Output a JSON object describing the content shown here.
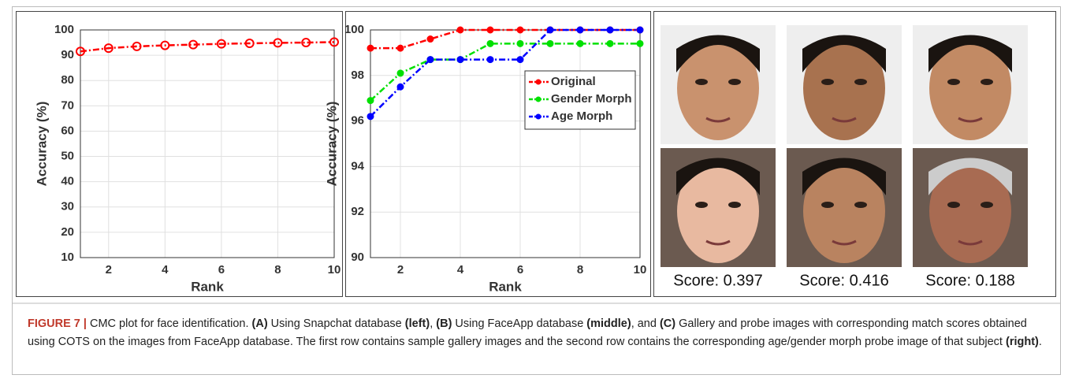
{
  "chart_data": [
    {
      "type": "line",
      "x": [
        1,
        2,
        3,
        4,
        5,
        6,
        7,
        8,
        9,
        10
      ],
      "xlabel": "Rank",
      "ylabel": "Accuracy (%)",
      "xlim": [
        1,
        10
      ],
      "xticks": [
        2,
        4,
        6,
        8,
        10
      ],
      "ylim": [
        10,
        100
      ],
      "yticks": [
        10,
        20,
        30,
        40,
        50,
        60,
        70,
        80,
        90,
        100
      ],
      "grid": true,
      "series": [
        {
          "color": "#ff0000",
          "values": [
            91.5,
            92.8,
            93.5,
            93.9,
            94.2,
            94.5,
            94.7,
            94.9,
            95.0,
            95.2
          ]
        }
      ]
    },
    {
      "type": "line",
      "x": [
        1,
        2,
        3,
        4,
        5,
        6,
        7,
        8,
        9,
        10
      ],
      "xlabel": "Rank",
      "ylabel": "Accuracy (%)",
      "xlim": [
        1,
        10
      ],
      "xticks": [
        2,
        4,
        6,
        8,
        10
      ],
      "ylim": [
        90,
        100
      ],
      "yticks": [
        90,
        92,
        94,
        96,
        98,
        100
      ],
      "grid": true,
      "legend": "upper right",
      "series": [
        {
          "name": "Original",
          "color": "#ff0000",
          "values": [
            99.2,
            99.2,
            99.6,
            100,
            100,
            100,
            100,
            100,
            100,
            100
          ]
        },
        {
          "name": "Gender Morph",
          "color": "#00e000",
          "values": [
            96.9,
            98.1,
            98.7,
            98.7,
            99.4,
            99.4,
            99.4,
            99.4,
            99.4,
            99.4
          ]
        },
        {
          "name": "Age Morph",
          "color": "#0000ff",
          "values": [
            96.2,
            97.5,
            98.7,
            98.7,
            98.7,
            98.7,
            100,
            100,
            100,
            100
          ]
        }
      ]
    }
  ],
  "faces": {
    "scores": [
      "Score: 0.397",
      "Score: 0.416",
      "Score: 0.188"
    ]
  },
  "caption": {
    "segments": [
      {
        "text": "FIGURE 7 | ",
        "style": "fig"
      },
      {
        "text": "CMC plot for face identification. "
      },
      {
        "text": "(A)",
        "style": "b"
      },
      {
        "text": " Using Snapchat database "
      },
      {
        "text": "(left)",
        "style": "b"
      },
      {
        "text": ", "
      },
      {
        "text": "(B)",
        "style": "b"
      },
      {
        "text": " Using FaceApp database "
      },
      {
        "text": "(middle)",
        "style": "b"
      },
      {
        "text": ", and "
      },
      {
        "text": "(C)",
        "style": "b"
      },
      {
        "text": " Gallery and probe images with corresponding match scores obtained using COTS on the images from FaceApp database. The first row contains sample gallery images and the second row contains the corresponding age/gender morph probe image of that subject "
      },
      {
        "text": "(right)",
        "style": "b"
      },
      {
        "text": "."
      }
    ]
  }
}
